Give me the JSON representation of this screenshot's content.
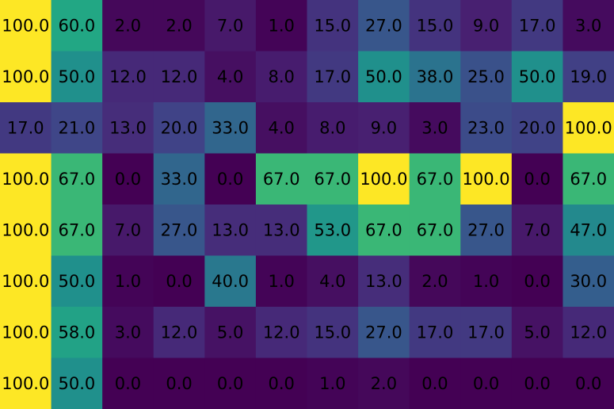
{
  "chart_data": {
    "type": "heatmap",
    "title": "",
    "xlabel": "",
    "ylabel": "",
    "colormap": "viridis",
    "vmin": 0,
    "vmax": 100,
    "rows": [
      [
        100.0,
        60.0,
        2.0,
        2.0,
        7.0,
        1.0,
        15.0,
        27.0,
        15.0,
        9.0,
        17.0,
        3.0
      ],
      [
        100.0,
        50.0,
        12.0,
        12.0,
        4.0,
        8.0,
        17.0,
        50.0,
        38.0,
        25.0,
        50.0,
        19.0
      ],
      [
        17.0,
        21.0,
        13.0,
        20.0,
        33.0,
        4.0,
        8.0,
        9.0,
        3.0,
        23.0,
        20.0,
        100.0
      ],
      [
        100.0,
        67.0,
        0.0,
        33.0,
        0.0,
        67.0,
        67.0,
        100.0,
        67.0,
        100.0,
        0.0,
        67.0
      ],
      [
        100.0,
        67.0,
        7.0,
        27.0,
        13.0,
        13.0,
        53.0,
        67.0,
        67.0,
        27.0,
        7.0,
        47.0
      ],
      [
        100.0,
        50.0,
        1.0,
        0.0,
        40.0,
        1.0,
        4.0,
        13.0,
        2.0,
        1.0,
        0.0,
        30.0
      ],
      [
        100.0,
        58.0,
        3.0,
        12.0,
        5.0,
        12.0,
        15.0,
        27.0,
        17.0,
        17.0,
        5.0,
        12.0
      ],
      [
        100.0,
        50.0,
        0.0,
        0.0,
        0.0,
        0.0,
        1.0,
        2.0,
        0.0,
        0.0,
        0.0,
        0.0
      ]
    ]
  }
}
